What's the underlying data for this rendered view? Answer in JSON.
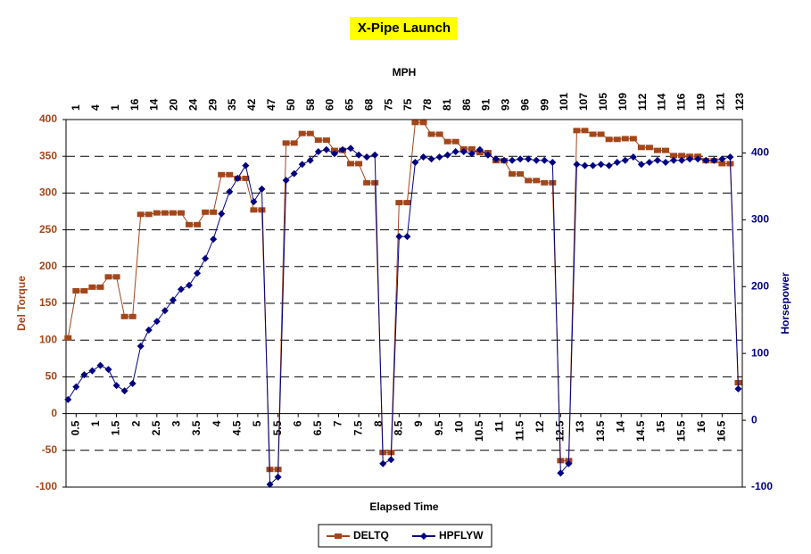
{
  "chart_data": {
    "type": "line",
    "title": "X-Pipe Launch",
    "x_label": "Elapsed Time",
    "y_label": "Del Torque",
    "y2_label": "Horsepower",
    "x2_label": "MPH",
    "x2_categories": [
      "1",
      "4",
      "1",
      "16",
      "14",
      "20",
      "24",
      "29",
      "35",
      "42",
      "47",
      "50",
      "58",
      "60",
      "65",
      "68",
      "75",
      "75",
      "78",
      "81",
      "86",
      "91",
      "93",
      "96",
      "99",
      "101",
      "107",
      "105",
      "109",
      "112",
      "114",
      "116",
      "119",
      "121",
      "123"
    ],
    "x": [
      0.3,
      0.5,
      0.7,
      0.9,
      1.1,
      1.3,
      1.5,
      1.7,
      1.9,
      2.1,
      2.3,
      2.5,
      2.7,
      2.9,
      3.1,
      3.3,
      3.5,
      3.7,
      3.9,
      4.1,
      4.3,
      4.5,
      4.7,
      4.9,
      5.1,
      5.3,
      5.5,
      5.7,
      5.9,
      6.1,
      6.3,
      6.5,
      6.7,
      6.9,
      7.1,
      7.3,
      7.5,
      7.7,
      7.9,
      8.1,
      8.3,
      8.5,
      8.7,
      8.9,
      9.1,
      9.3,
      9.5,
      9.7,
      9.9,
      10.1,
      10.3,
      10.5,
      10.7,
      10.9,
      11.1,
      11.3,
      11.5,
      11.7,
      11.9,
      12.1,
      12.3,
      12.5,
      12.7,
      12.9,
      13.1,
      13.3,
      13.5,
      13.7,
      13.9,
      14.1,
      14.3,
      14.5,
      14.7,
      14.9,
      15.1,
      15.3,
      15.5,
      15.7,
      15.9,
      16.1,
      16.3,
      16.5,
      16.7,
      16.9
    ],
    "series": [
      {
        "name": "DELTQ",
        "color": "#a3461a",
        "marker": "square",
        "axis": "y",
        "values": [
          103,
          167,
          167,
          172,
          172,
          186,
          186,
          132,
          132,
          271,
          271,
          273,
          273,
          273,
          273,
          257,
          257,
          274,
          274,
          325,
          325,
          320,
          320,
          277,
          277,
          -76,
          -76,
          368,
          368,
          381,
          381,
          372,
          372,
          358,
          358,
          340,
          340,
          314,
          314,
          -53,
          -53,
          287,
          287,
          396,
          396,
          380,
          380,
          370,
          370,
          360,
          360,
          355,
          355,
          344,
          344,
          326,
          326,
          317,
          317,
          314,
          314,
          -64,
          -64,
          385,
          385,
          380,
          380,
          373,
          373,
          374,
          374,
          362,
          362,
          358,
          358,
          351,
          351,
          350,
          350,
          344,
          344,
          340,
          340,
          42
        ]
      },
      {
        "name": "HPFLYW",
        "color": "#000080",
        "marker": "diamond",
        "axis": "y2",
        "values": [
          31,
          50,
          68,
          74,
          82,
          76,
          52,
          44,
          55,
          111,
          135,
          148,
          164,
          180,
          196,
          202,
          220,
          242,
          271,
          309,
          342,
          362,
          381,
          327,
          346,
          -96,
          -85,
          359,
          369,
          383,
          389,
          402,
          405,
          399,
          405,
          407,
          397,
          394,
          397,
          -65,
          -59,
          275,
          275,
          386,
          394,
          391,
          394,
          397,
          402,
          402,
          399,
          405,
          397,
          391,
          389,
          389,
          391,
          391,
          389,
          389,
          386,
          -79,
          -65,
          383,
          381,
          381,
          383,
          381,
          386,
          389,
          394,
          383,
          386,
          389,
          386,
          389,
          389,
          391,
          391,
          389,
          389,
          391,
          394,
          47
        ]
      }
    ],
    "xlim": [
      0.25,
      17
    ],
    "xticks": [
      0.5,
      1,
      1.5,
      2,
      2.5,
      3,
      3.5,
      4,
      4.5,
      5,
      5.5,
      6,
      6.5,
      7,
      7.5,
      8,
      8.5,
      9,
      9.5,
      10,
      10.5,
      11,
      11.5,
      12,
      12.5,
      13,
      13.5,
      14,
      14.5,
      15,
      15.5,
      16,
      16.5
    ],
    "ylim": [
      -100,
      400
    ],
    "yticks": [
      -100,
      -50,
      0,
      50,
      100,
      150,
      200,
      250,
      300,
      350,
      400
    ],
    "y2lim": [
      -100,
      450
    ],
    "y2ticks": [
      -100,
      0,
      100,
      200,
      300,
      400
    ],
    "grid": true,
    "legend": "bottom"
  }
}
